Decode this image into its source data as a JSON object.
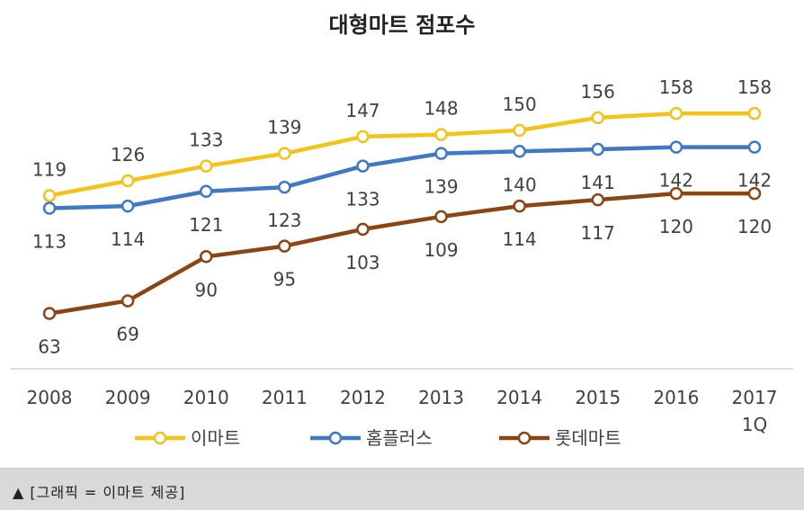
{
  "chart_data": {
    "type": "line",
    "title": "대형마트 점포수",
    "categories": [
      "2008",
      "2009",
      "2010",
      "2011",
      "2012",
      "2013",
      "2014",
      "2015",
      "2016",
      "2017\n1Q"
    ],
    "series": [
      {
        "name": "이마트",
        "color": "#f2c318",
        "values": [
          119,
          126,
          133,
          139,
          147,
          148,
          150,
          156,
          158,
          158
        ]
      },
      {
        "name": "홈플러스",
        "color": "#3f78c4",
        "values": [
          113,
          114,
          121,
          123,
          133,
          139,
          140,
          141,
          142,
          142
        ]
      },
      {
        "name": "롯데마트",
        "color": "#8b4513",
        "values": [
          63,
          69,
          90,
          95,
          103,
          109,
          114,
          117,
          120,
          120
        ]
      }
    ],
    "xlabel": "",
    "ylabel": "",
    "ylim": [
      40,
      170
    ],
    "grid": false,
    "legend_position": "bottom",
    "data_labels": true
  },
  "caption": "▲ [그래픽 = 이마트 제공]"
}
